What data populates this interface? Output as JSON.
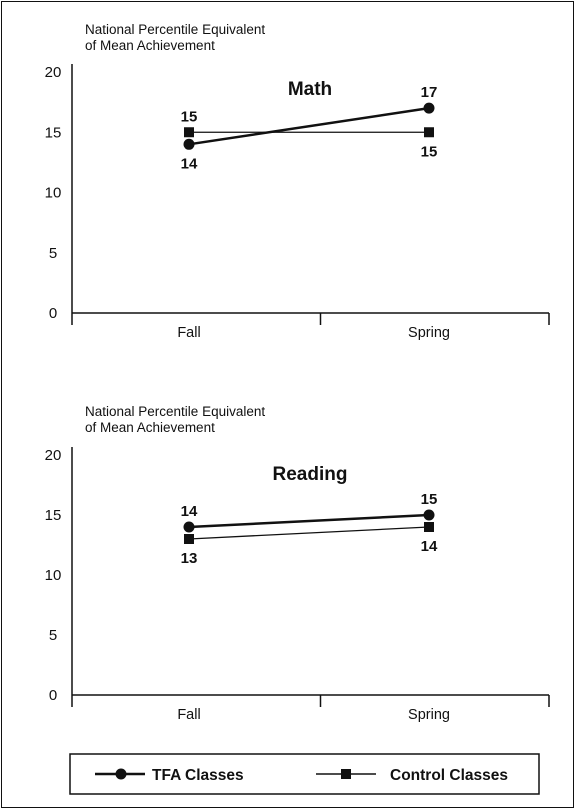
{
  "chart_data": [
    {
      "type": "line",
      "title": "Math",
      "ylabel_lines": [
        "National Percentile Equivalent",
        "of Mean Achievement"
      ],
      "categories": [
        "Fall",
        "Spring"
      ],
      "ylim": [
        0,
        20
      ],
      "yticks": [
        0,
        5,
        10,
        15,
        20
      ],
      "series": [
        {
          "name": "TFA Classes",
          "marker": "circle",
          "values": [
            14,
            17
          ],
          "labels": [
            "14",
            "17"
          ],
          "label_pos": [
            "below",
            "above"
          ]
        },
        {
          "name": "Control Classes",
          "marker": "square",
          "values": [
            15,
            15
          ],
          "labels": [
            "15",
            "15"
          ],
          "label_pos": [
            "above",
            "below"
          ]
        }
      ]
    },
    {
      "type": "line",
      "title": "Reading",
      "ylabel_lines": [
        "National Percentile Equivalent",
        "of Mean Achievement"
      ],
      "categories": [
        "Fall",
        "Spring"
      ],
      "ylim": [
        0,
        20
      ],
      "yticks": [
        0,
        5,
        10,
        15,
        20
      ],
      "series": [
        {
          "name": "TFA Classes",
          "marker": "circle",
          "values": [
            14,
            15
          ],
          "labels": [
            "14",
            "15"
          ],
          "label_pos": [
            "above",
            "above"
          ]
        },
        {
          "name": "Control Classes",
          "marker": "square",
          "values": [
            13,
            14
          ],
          "labels": [
            "13",
            "14"
          ],
          "label_pos": [
            "below",
            "below"
          ]
        }
      ]
    }
  ],
  "legend": [
    {
      "label": "TFA Classes",
      "marker": "circle"
    },
    {
      "label": "Control Classes",
      "marker": "square"
    }
  ]
}
